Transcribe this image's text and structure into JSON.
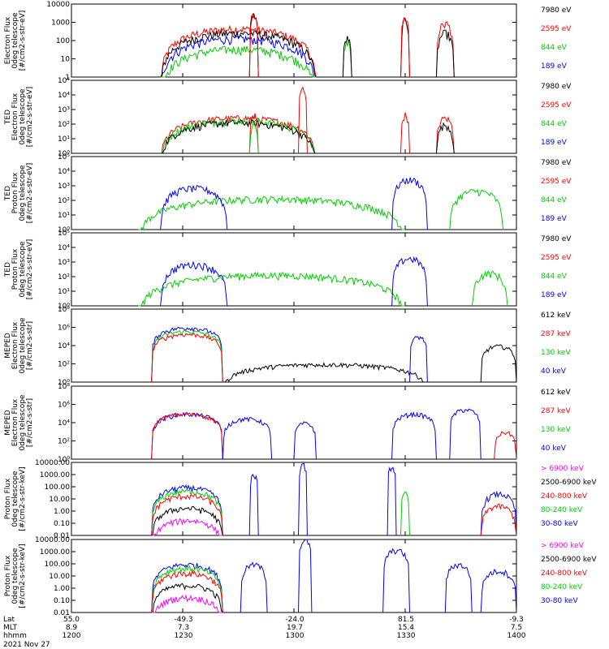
{
  "chart_data": [
    {
      "type": "line",
      "panel": 1,
      "yscale": "log",
      "ylabel": [
        "Electron Flux",
        "0deg telescope",
        "[#/cm2-s-str-eV]"
      ],
      "yticks": [
        "10000",
        "1000",
        "100",
        "10",
        "1"
      ],
      "ylim": [
        1,
        10000
      ],
      "legend": [
        {
          "label": "7980 eV",
          "color": "#000000"
        },
        {
          "label": "2595 eV",
          "color": "#ff0000"
        },
        {
          "label": "844 eV",
          "color": "#00d000"
        },
        {
          "label": "189 eV",
          "color": "#0000ff"
        }
      ],
      "bursts": [
        [
          20,
          55,
          "#ff0000",
          500
        ],
        [
          20,
          55,
          "#000000",
          300
        ],
        [
          20,
          55,
          "#0000ff",
          150
        ],
        [
          20,
          55,
          "#00d000",
          40
        ],
        [
          40,
          42,
          "#000000",
          3000
        ],
        [
          40,
          42,
          "#ff0000",
          3000
        ],
        [
          61,
          63,
          "#00d000",
          100
        ],
        [
          61,
          63,
          "#000000",
          150
        ],
        [
          74,
          76,
          "#000000",
          1500
        ],
        [
          74,
          76,
          "#ff0000",
          2000
        ],
        [
          82,
          86,
          "#ff0000",
          1000
        ],
        [
          82,
          86,
          "#000000",
          300
        ]
      ]
    },
    {
      "type": "line",
      "panel": 2,
      "yscale": "log",
      "ylabel": [
        "TED",
        "Electron Flux",
        "0deg telescope",
        "[#/cm2-s-str-eV]"
      ],
      "yticks": [
        "10⁵",
        "10⁴",
        "10³",
        "10²",
        "10¹",
        "10⁰"
      ],
      "ylim": [
        1,
        100000
      ],
      "legend": [
        {
          "label": "7980 eV",
          "color": "#000000"
        },
        {
          "label": "2595 eV",
          "color": "#ff0000"
        },
        {
          "label": "844 eV",
          "color": "#00d000"
        },
        {
          "label": "189 eV",
          "color": "#0000ff"
        }
      ],
      "bursts": [
        [
          20,
          55,
          "#ff0000",
          300
        ],
        [
          20,
          55,
          "#00d000",
          200
        ],
        [
          20,
          55,
          "#000000",
          150
        ],
        [
          40,
          42,
          "#ff0000",
          500
        ],
        [
          40,
          42,
          "#00d000",
          100
        ],
        [
          51,
          53,
          "#ff0000",
          30000
        ],
        [
          74,
          76,
          "#ff0000",
          500
        ],
        [
          82,
          86,
          "#ff0000",
          300
        ],
        [
          82,
          86,
          "#000000",
          100
        ]
      ]
    },
    {
      "type": "line",
      "panel": 3,
      "yscale": "log",
      "ylabel": [
        "TED",
        "Proton Flux",
        "0deg telescope",
        "[#/cm2-s-str-eV]"
      ],
      "yticks": [
        "10⁵",
        "10⁴",
        "10³",
        "10²",
        "10¹",
        "10⁰"
      ],
      "ylim": [
        1,
        100000
      ],
      "legend": [
        {
          "label": "7980 eV",
          "color": "#000000"
        },
        {
          "label": "2595 eV",
          "color": "#ff0000"
        },
        {
          "label": "844 eV",
          "color": "#00d000"
        },
        {
          "label": "189 eV",
          "color": "#0000ff"
        }
      ],
      "bursts": [
        [
          15,
          75,
          "#00d000",
          150
        ],
        [
          20,
          35,
          "#0000ff",
          800
        ],
        [
          72,
          80,
          "#0000ff",
          3000
        ],
        [
          85,
          97,
          "#00d000",
          500
        ]
      ]
    },
    {
      "type": "line",
      "panel": 4,
      "yscale": "log",
      "ylabel": [
        "TED",
        "Proton Flux",
        "0deg telescope",
        "[#/cm2-s-str-eV]"
      ],
      "yticks": [
        "10⁵",
        "10⁴",
        "10³",
        "10²",
        "10¹",
        "10⁰"
      ],
      "ylim": [
        1,
        100000
      ],
      "legend": [
        {
          "label": "7980 eV",
          "color": "#000000"
        },
        {
          "label": "2595 eV",
          "color": "#ff0000"
        },
        {
          "label": "844 eV",
          "color": "#00d000"
        },
        {
          "label": "189 eV",
          "color": "#0000ff"
        }
      ],
      "bursts": [
        [
          15,
          75,
          "#00d000",
          150
        ],
        [
          20,
          35,
          "#0000ff",
          800
        ],
        [
          72,
          80,
          "#0000ff",
          2000
        ],
        [
          90,
          98,
          "#00d000",
          200
        ]
      ]
    },
    {
      "type": "line",
      "panel": 5,
      "yscale": "log",
      "ylabel": [
        "MEPED",
        "Electron Flux",
        "0deg telescope",
        "[#/cm2-s-str]"
      ],
      "yticks": [
        "10⁸",
        "10⁶",
        "10⁴",
        "10²",
        "10⁰"
      ],
      "ylim": [
        1,
        100000000
      ],
      "legend": [
        {
          "label": "612 keV",
          "color": "#000000"
        },
        {
          "label": "287 keV",
          "color": "#ff0000"
        },
        {
          "label": "130 keV",
          "color": "#00d000"
        },
        {
          "label": "40 keV",
          "color": "#0000ff"
        }
      ],
      "bursts": [
        [
          18,
          34,
          "#0000ff",
          1000000
        ],
        [
          18,
          34,
          "#00d000",
          400000
        ],
        [
          18,
          34,
          "#ff0000",
          200000
        ],
        [
          34,
          80,
          "#000000",
          100
        ],
        [
          76,
          80,
          "#0000ff",
          100000
        ],
        [
          92,
          100,
          "#000000",
          10000
        ]
      ]
    },
    {
      "type": "line",
      "panel": 6,
      "yscale": "log",
      "ylabel": [
        "MEPED",
        "Electron Flux",
        "0deg telescope",
        "[#/cm2-s-str]"
      ],
      "yticks": [
        "10⁸",
        "10⁶",
        "10⁴",
        "10²",
        "10⁰"
      ],
      "ylim": [
        1,
        100000000
      ],
      "legend": [
        {
          "label": "612 keV",
          "color": "#000000"
        },
        {
          "label": "287 keV",
          "color": "#ff0000"
        },
        {
          "label": "130 keV",
          "color": "#00d000"
        },
        {
          "label": "40 keV",
          "color": "#0000ff"
        }
      ],
      "bursts": [
        [
          18,
          34,
          "#0000ff",
          100000
        ],
        [
          18,
          34,
          "#ff0000",
          100000
        ],
        [
          34,
          45,
          "#0000ff",
          30000
        ],
        [
          50,
          55,
          "#0000ff",
          10000
        ],
        [
          72,
          82,
          "#0000ff",
          100000
        ],
        [
          85,
          92,
          "#0000ff",
          300000
        ],
        [
          95,
          100,
          "#ff0000",
          1000
        ]
      ]
    },
    {
      "type": "line",
      "panel": 7,
      "yscale": "log",
      "ylabel": [
        "Proton Flux",
        "0deg telescope",
        "[#/cm2-s-str-keV]"
      ],
      "yticks": [
        "10000.00",
        "1000.00",
        "100.00",
        "10.00",
        "1.00",
        "0.10",
        "0.01"
      ],
      "ylim": [
        0.01,
        10000
      ],
      "legend": [
        {
          "label": "> 6900 keV",
          "color": "#ff00ff"
        },
        {
          "label": "2500-6900 keV",
          "color": "#000000"
        },
        {
          "label": "240-800 keV",
          "color": "#ff0000"
        },
        {
          "label": "80-240 keV",
          "color": "#00d000"
        },
        {
          "label": "30-80 keV",
          "color": "#0000ff"
        }
      ],
      "bursts": [
        [
          18,
          34,
          "#0000ff",
          100
        ],
        [
          18,
          34,
          "#00d000",
          50
        ],
        [
          18,
          34,
          "#ff0000",
          20
        ],
        [
          18,
          34,
          "#000000",
          2
        ],
        [
          18,
          34,
          "#ff00ff",
          0.2
        ],
        [
          40,
          42,
          "#0000ff",
          1000
        ],
        [
          51,
          53,
          "#0000ff",
          8000
        ],
        [
          71,
          73,
          "#0000ff",
          5000
        ],
        [
          74,
          76,
          "#00d000",
          30
        ],
        [
          92,
          100,
          "#0000ff",
          30
        ],
        [
          92,
          100,
          "#ff0000",
          3
        ]
      ]
    },
    {
      "type": "line",
      "panel": 8,
      "yscale": "log",
      "ylabel": [
        "Proton Flux",
        "0deg telescope",
        "[#/cm2-s-str-keV]"
      ],
      "yticks": [
        "10000.00",
        "1000.00",
        "100.00",
        "10.00",
        "1.00",
        "0.10",
        "0.01"
      ],
      "ylim": [
        0.01,
        10000
      ],
      "legend": [
        {
          "label": "> 6900 keV",
          "color": "#ff00ff"
        },
        {
          "label": "2500-6900 keV",
          "color": "#000000"
        },
        {
          "label": "240-800 keV",
          "color": "#ff0000"
        },
        {
          "label": "80-240 keV",
          "color": "#00d000"
        },
        {
          "label": "30-80 keV",
          "color": "#0000ff"
        }
      ],
      "bursts": [
        [
          18,
          34,
          "#0000ff",
          100
        ],
        [
          18,
          34,
          "#00d000",
          50
        ],
        [
          18,
          34,
          "#ff0000",
          20
        ],
        [
          18,
          34,
          "#000000",
          2
        ],
        [
          18,
          34,
          "#ff00ff",
          0.2
        ],
        [
          38,
          44,
          "#0000ff",
          100
        ],
        [
          51,
          54,
          "#0000ff",
          10000
        ],
        [
          70,
          76,
          "#0000ff",
          1500
        ],
        [
          84,
          90,
          "#0000ff",
          100
        ],
        [
          92,
          100,
          "#0000ff",
          30
        ]
      ]
    }
  ],
  "x_axis": {
    "row_labels": [
      "Lat",
      "MLT",
      "hhmm"
    ],
    "ticks": [
      {
        "lat": "55.0",
        "mlt": "8.9",
        "hhmm": "1200"
      },
      {
        "lat": "-49.3",
        "mlt": "7.3",
        "hhmm": "1230"
      },
      {
        "lat": "-24.0",
        "mlt": "19.7",
        "hhmm": "1300"
      },
      {
        "lat": "81.5",
        "mlt": "15.4",
        "hhmm": "1330"
      },
      {
        "lat": "-9.3",
        "mlt": "7.5",
        "hhmm": "1400"
      }
    ],
    "date": "2021 Nov 27"
  }
}
